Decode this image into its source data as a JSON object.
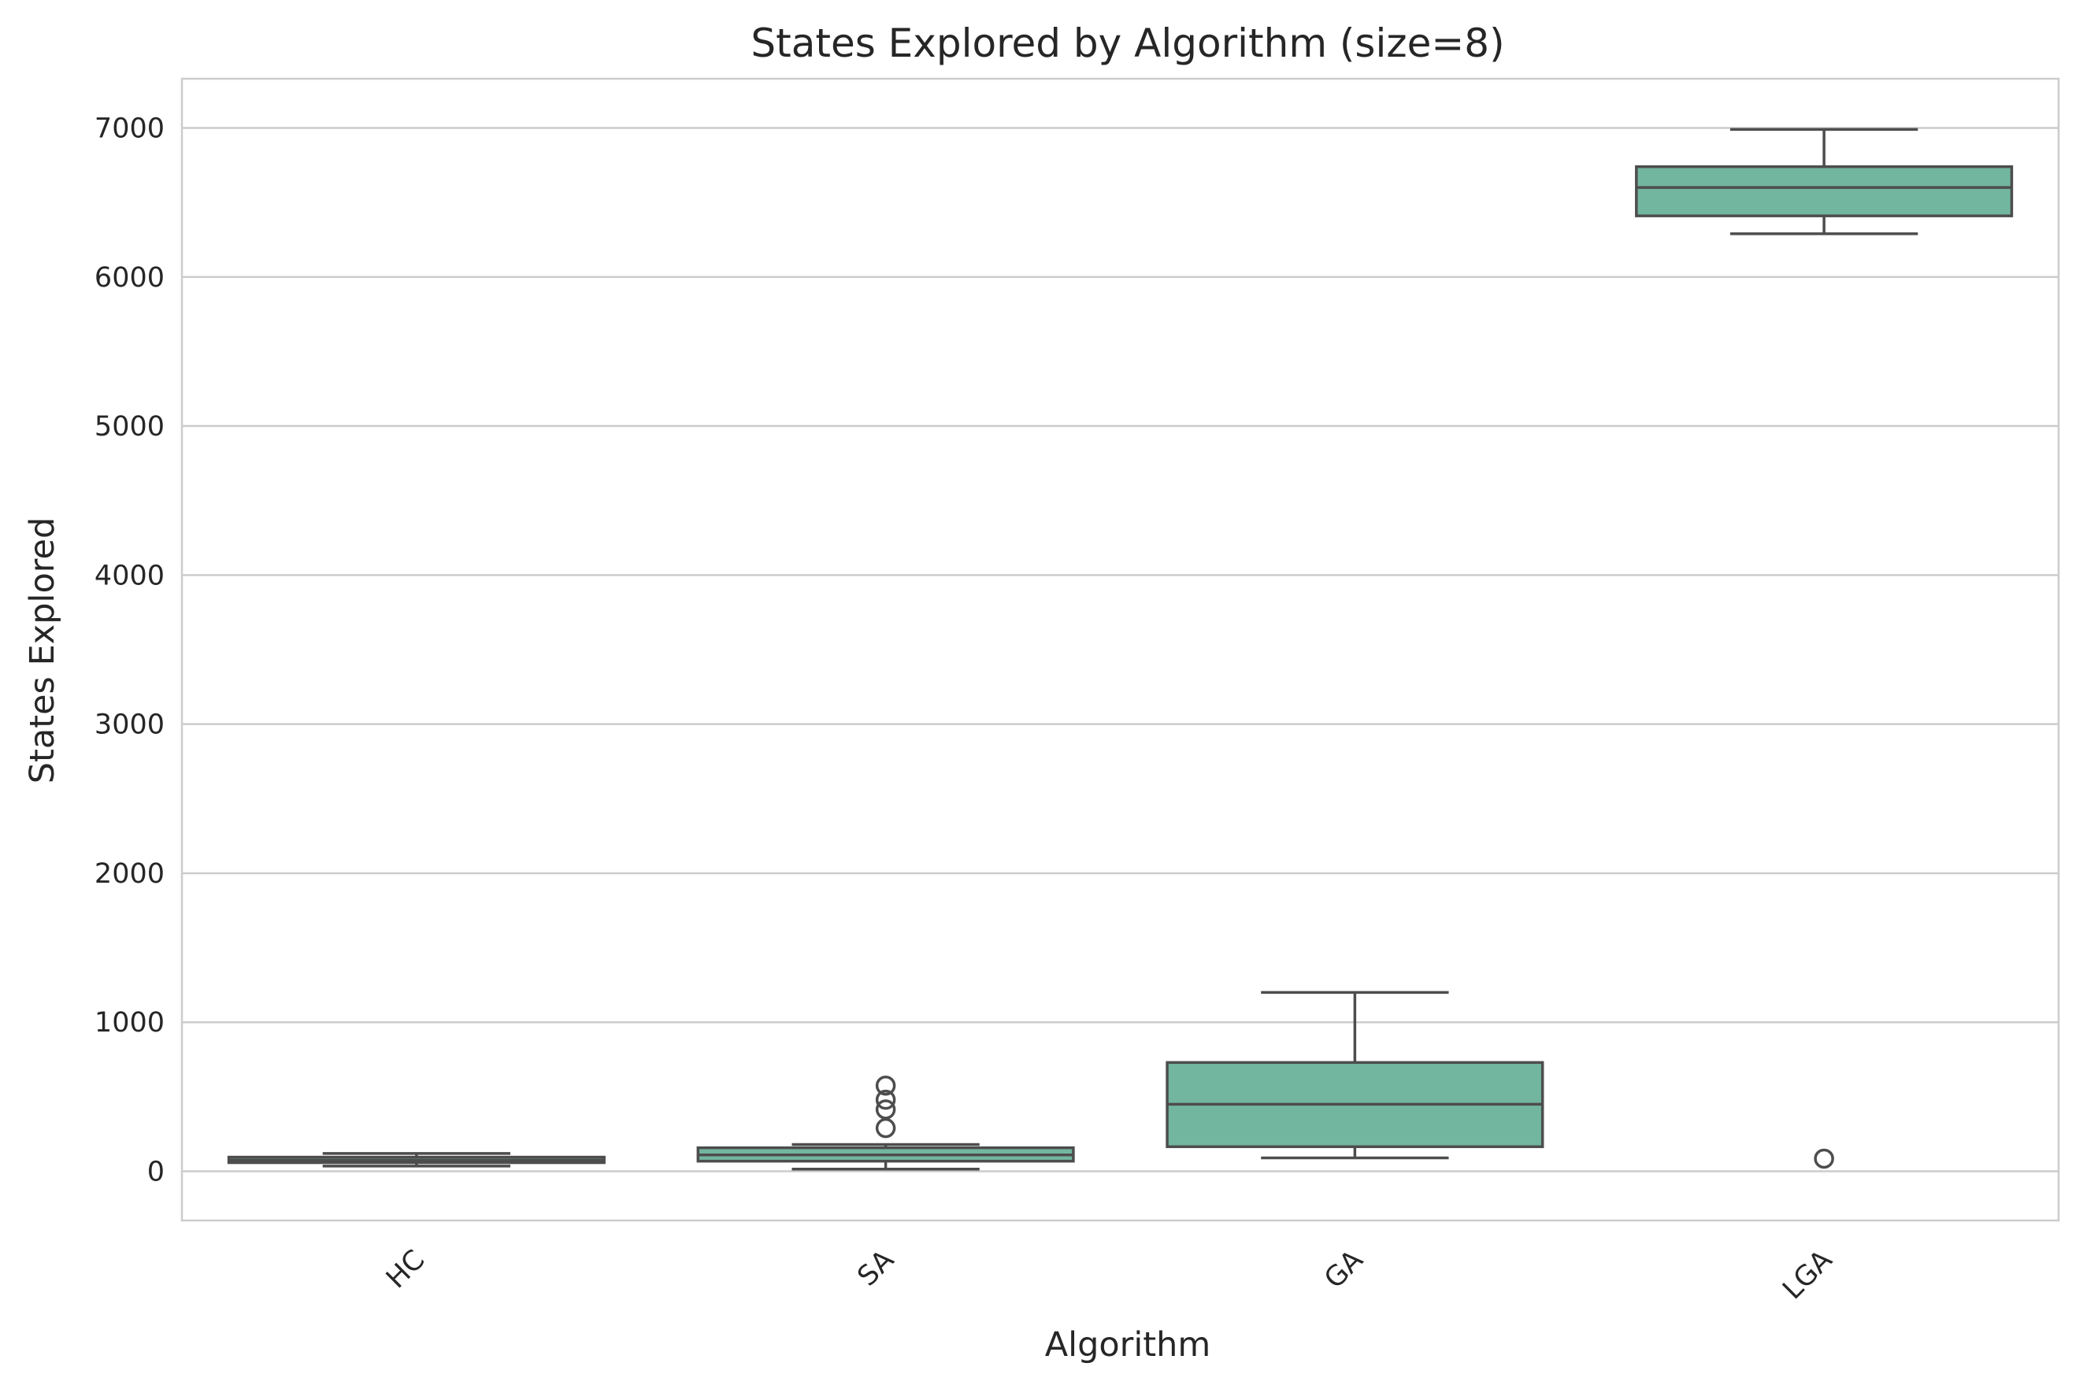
{
  "chart_data": {
    "type": "box",
    "title": "States Explored by Algorithm (size=8)",
    "xlabel": "Algorithm",
    "ylabel": "States Explored",
    "categories": [
      "HC",
      "SA",
      "GA",
      "LGA"
    ],
    "ylim": [
      -330,
      7330
    ],
    "yticks": [
      0,
      1000,
      2000,
      3000,
      4000,
      5000,
      6000,
      7000
    ],
    "grid": true,
    "legend": "none",
    "colors": {
      "box_fill": "#72b6a0",
      "box_edge": "#4d4d4d",
      "grid": "#cccccc",
      "frame": "#cccccc",
      "text": "#262626",
      "background": "#ffffff"
    },
    "boxes": [
      {
        "category": "HC",
        "whisker_low": 35,
        "q1": 58,
        "median": 75,
        "q3": 95,
        "whisker_high": 120,
        "outliers": []
      },
      {
        "category": "SA",
        "whisker_low": 15,
        "q1": 68,
        "median": 110,
        "q3": 158,
        "whisker_high": 180,
        "outliers": [
          290,
          415,
          480,
          575
        ]
      },
      {
        "category": "GA",
        "whisker_low": 90,
        "q1": 165,
        "median": 450,
        "q3": 730,
        "whisker_high": 1200,
        "outliers": []
      },
      {
        "category": "LGA",
        "whisker_low": 6290,
        "q1": 6410,
        "median": 6600,
        "q3": 6740,
        "whisker_high": 6990,
        "outliers": [
          85
        ]
      }
    ]
  }
}
